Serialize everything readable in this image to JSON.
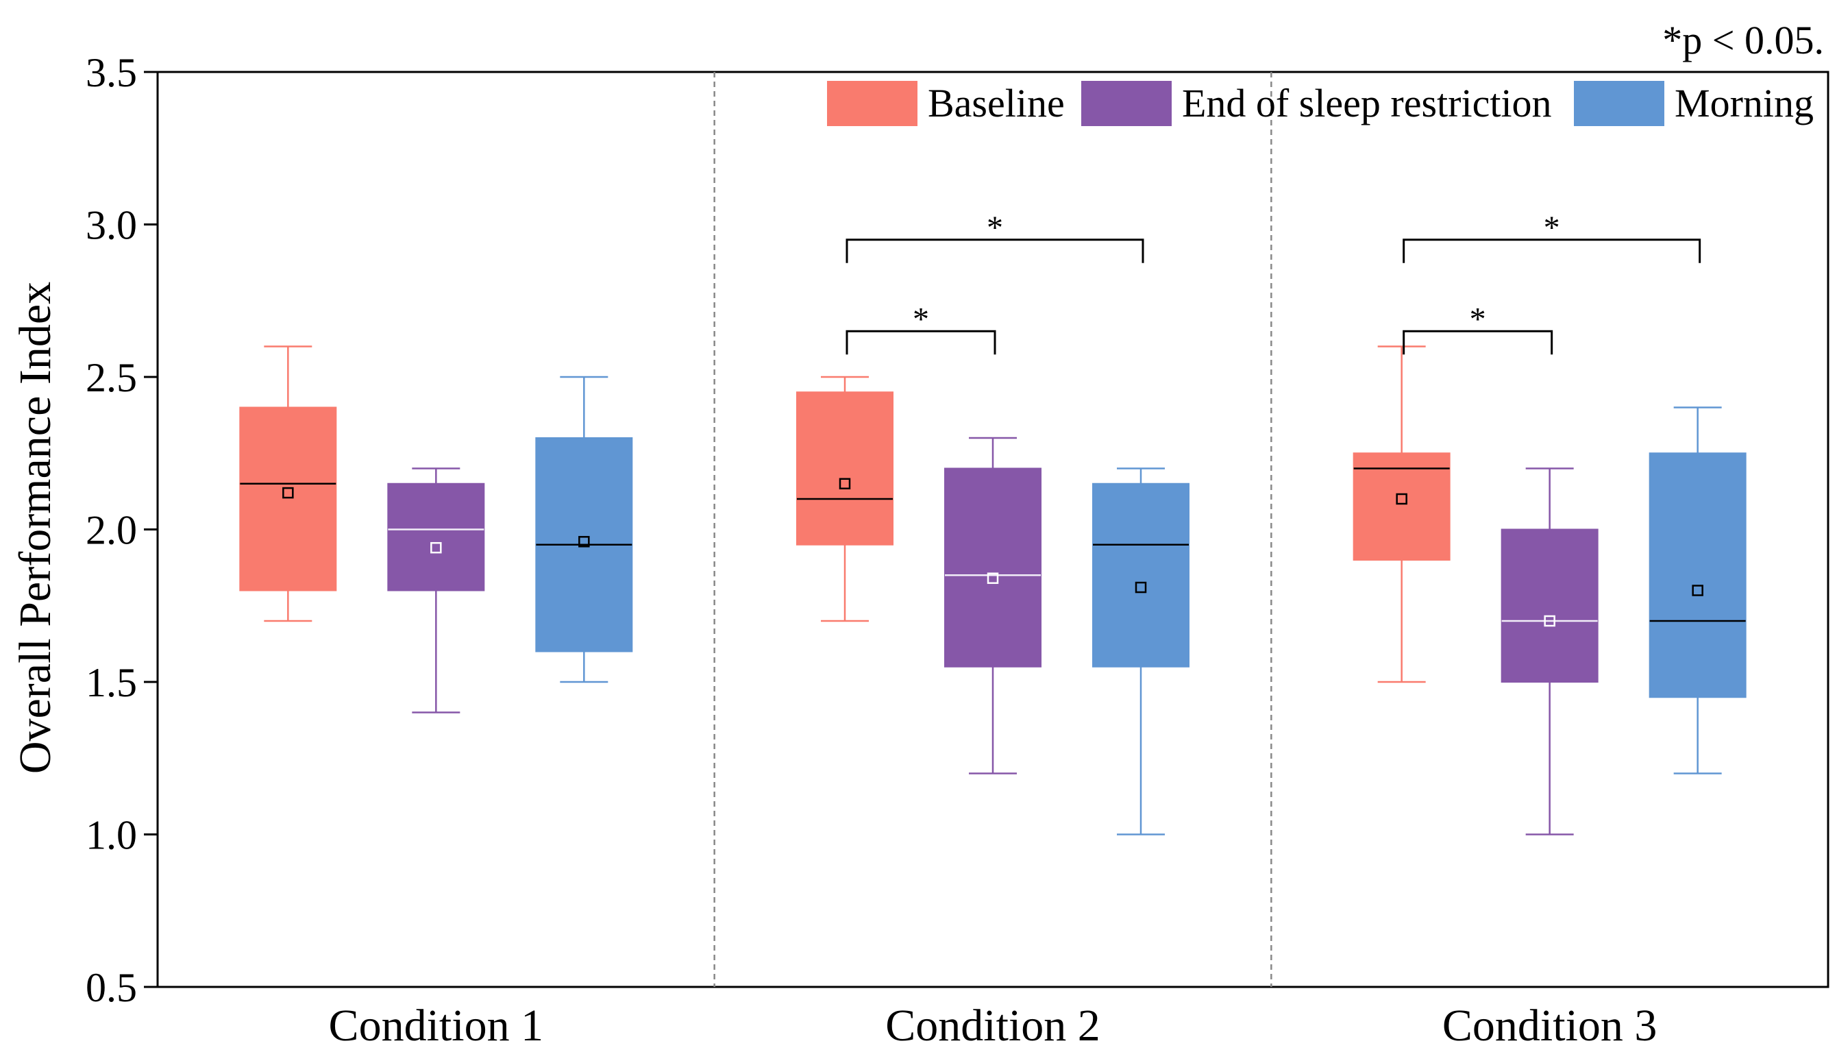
{
  "chart_data": {
    "type": "boxplot",
    "ylabel": "Overall Performance Index",
    "xlabel": "",
    "ylim": [
      0.5,
      3.5
    ],
    "yticks": [
      "0.5",
      "1.0",
      "1.5",
      "2.0",
      "2.5",
      "3.0",
      "3.5"
    ],
    "ytick_values": [
      0.5,
      1.0,
      1.5,
      2.0,
      2.5,
      3.0,
      3.5
    ],
    "categories": [
      "Condition 1",
      "Condition 2",
      "Condition 3"
    ],
    "annotation": "*p < 0.05.",
    "legend": {
      "placement": "top-right",
      "entries": [
        "Baseline",
        "End of sleep restriction",
        "Morning"
      ]
    },
    "colors": {
      "Baseline": "#f97b6e",
      "End of sleep restriction": "#8657a8",
      "Morning": "#6096d3"
    },
    "series": [
      {
        "name": "Baseline",
        "boxes": [
          {
            "whisker_low": 1.7,
            "q1": 1.8,
            "median": 2.15,
            "q3": 2.4,
            "whisker_high": 2.6,
            "mean": 2.12
          },
          {
            "whisker_low": 1.7,
            "q1": 1.95,
            "median": 2.1,
            "q3": 2.45,
            "whisker_high": 2.5,
            "mean": 2.15
          },
          {
            "whisker_low": 1.5,
            "q1": 1.9,
            "median": 2.2,
            "q3": 2.25,
            "whisker_high": 2.6,
            "mean": 2.1
          }
        ]
      },
      {
        "name": "End of sleep restriction",
        "boxes": [
          {
            "whisker_low": 1.4,
            "q1": 1.8,
            "median": 2.0,
            "q3": 2.15,
            "whisker_high": 2.2,
            "mean": 1.94
          },
          {
            "whisker_low": 1.2,
            "q1": 1.55,
            "median": 1.85,
            "q3": 2.2,
            "whisker_high": 2.3,
            "mean": 1.84
          },
          {
            "whisker_low": 1.0,
            "q1": 1.5,
            "median": 1.7,
            "q3": 2.0,
            "whisker_high": 2.2,
            "mean": 1.7
          }
        ]
      },
      {
        "name": "Morning",
        "boxes": [
          {
            "whisker_low": 1.5,
            "q1": 1.6,
            "median": 1.95,
            "q3": 2.3,
            "whisker_high": 2.5,
            "mean": 1.96
          },
          {
            "whisker_low": 1.0,
            "q1": 1.55,
            "median": 1.95,
            "q3": 2.15,
            "whisker_high": 2.2,
            "mean": 1.81
          },
          {
            "whisker_low": 1.2,
            "q1": 1.45,
            "median": 1.7,
            "q3": 2.25,
            "whisker_high": 2.4,
            "mean": 1.8
          }
        ]
      }
    ],
    "significance": [
      {
        "condition": 1,
        "from_series": 0,
        "to_series": 1,
        "label": "*",
        "level": 2.65
      },
      {
        "condition": 1,
        "from_series": 0,
        "to_series": 2,
        "label": "*",
        "level": 2.95
      },
      {
        "condition": 2,
        "from_series": 0,
        "to_series": 1,
        "label": "*",
        "level": 2.65
      },
      {
        "condition": 2,
        "from_series": 0,
        "to_series": 2,
        "label": "*",
        "level": 2.95
      }
    ]
  }
}
